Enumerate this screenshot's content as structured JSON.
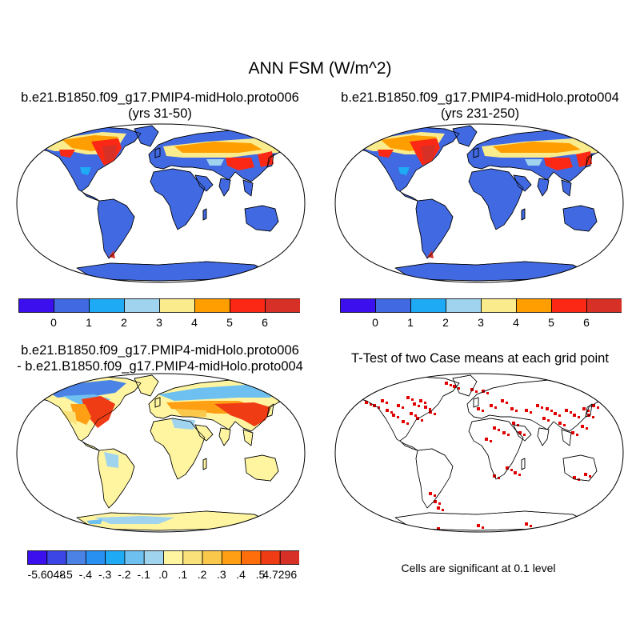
{
  "figure": {
    "title": "ANN FSM (W/m^2)"
  },
  "panels": [
    {
      "title_line1": "b.e21.B1850.f09_g17.PMIP4-midHolo.proto006",
      "title_line2": "(yrs 31-50)",
      "colorbar": {
        "colors": [
          "#3c10ee",
          "#4169e1",
          "#1eaaf5",
          "#a0d3ee",
          "#faeb8c",
          "#ff9e00",
          "#fa2814",
          "#d73027"
        ],
        "labels": [
          "0",
          "1",
          "2",
          "3",
          "4",
          "5",
          "6"
        ]
      }
    },
    {
      "title_line1": "b.e21.B1850.f09_g17.PMIP4-midHolo.proto004",
      "title_line2": "(yrs 231-250)",
      "colorbar": {
        "colors": [
          "#3c10ee",
          "#4169e1",
          "#1eaaf5",
          "#a0d3ee",
          "#faeb8c",
          "#ff9e00",
          "#fa2814",
          "#d73027"
        ],
        "labels": [
          "0",
          "1",
          "2",
          "3",
          "4",
          "5",
          "6"
        ]
      }
    },
    {
      "title_line1": "b.e21.B1850.f09_g17.PMIP4-midHolo.proto006",
      "title_line2": "- b.e21.B1850.f09_g17.PMIP4-midHolo.proto004",
      "colorbar": {
        "colors": [
          "#3c10ee",
          "#3c46e6",
          "#4a82e6",
          "#2890f0",
          "#1eaaf5",
          "#6ec0f0",
          "#a0d3ee",
          "#fff5a0",
          "#fae17a",
          "#fac84b",
          "#ffa014",
          "#ff6e0a",
          "#f03c14",
          "#d73027"
        ],
        "labels": [
          "-5.6048",
          "-.5",
          "-.4",
          "-.3",
          "-.2",
          "-.1",
          ".0",
          ".1",
          ".2",
          ".3",
          ".4",
          ".5",
          "4.7296"
        ]
      }
    },
    {
      "title_line1": "T-Test of two Case means at each grid point",
      "note": "Cells are significant at 0.1 level"
    }
  ]
}
